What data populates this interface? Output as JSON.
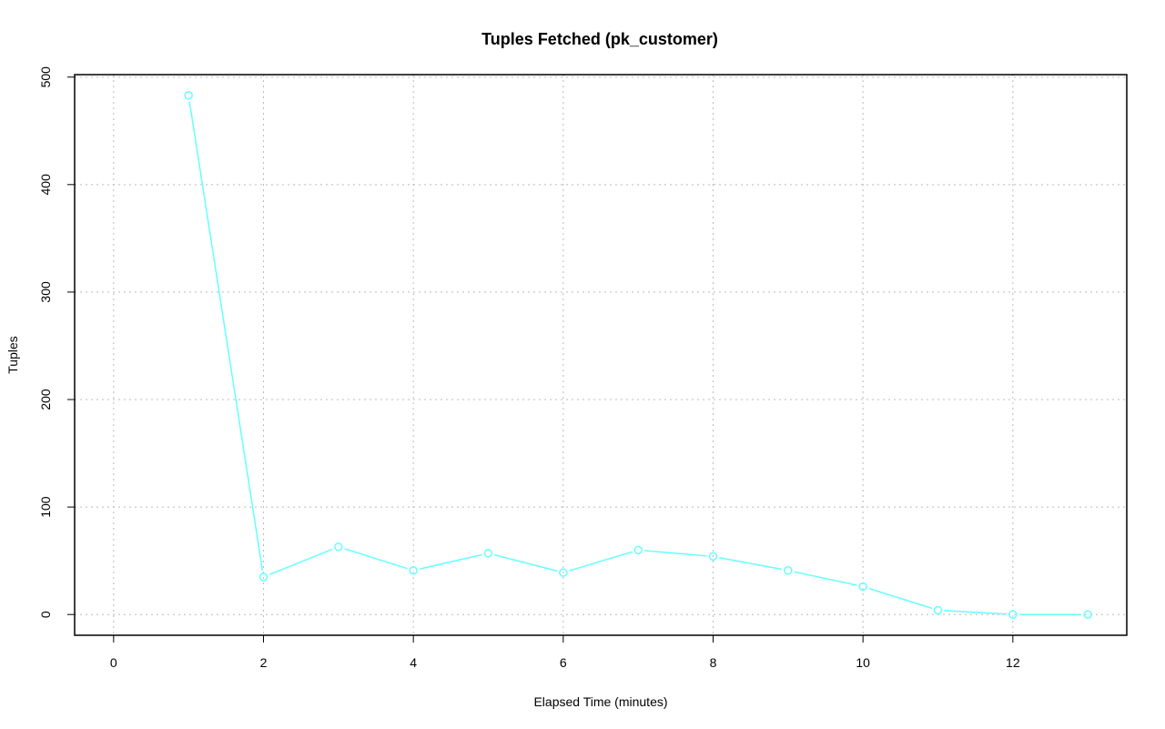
{
  "chart_data": {
    "type": "line",
    "title": "Tuples Fetched (pk_customer)",
    "xlabel": "Elapsed Time (minutes)",
    "ylabel": "Tuples",
    "xlim": [
      -0.52,
      13.52
    ],
    "ylim": [
      -19.3,
      502.3
    ],
    "xticks": [
      0,
      2,
      4,
      6,
      8,
      10,
      12
    ],
    "yticks": [
      0,
      100,
      200,
      300,
      400,
      500
    ],
    "grid": true,
    "series": [
      {
        "name": "pk_customer",
        "color": "#66FFFF",
        "x": [
          1,
          2,
          3,
          4,
          5,
          6,
          7,
          8,
          9,
          10,
          11,
          12,
          13
        ],
        "y": [
          483,
          35,
          63,
          41,
          57,
          39,
          60,
          54,
          41,
          26,
          4,
          0,
          0
        ]
      }
    ]
  }
}
